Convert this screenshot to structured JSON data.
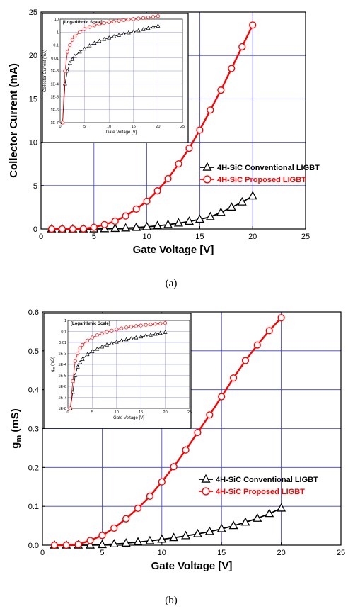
{
  "chart_data": [
    {
      "type": "line",
      "caption": "(a)",
      "xlabel": "Gate Voltage [V]",
      "ylabel": "Collector Current (mA)",
      "xlim": [
        0,
        25
      ],
      "ylim": [
        0,
        25
      ],
      "xticks": [
        0,
        5,
        10,
        15,
        20,
        25
      ],
      "yticks": [
        0,
        5,
        10,
        15,
        20,
        25
      ],
      "grid": true,
      "legend_position": "center-right",
      "series": [
        {
          "name": "4H-SiC Conventional LIGBT",
          "color": "#000000",
          "marker": "triangle",
          "x": [
            1,
            2,
            3,
            4,
            5,
            6,
            7,
            8,
            9,
            10,
            11,
            12,
            13,
            14,
            15,
            16,
            17,
            18,
            19,
            20
          ],
          "y": [
            0,
            0,
            0,
            0,
            0,
            0.02,
            0.05,
            0.1,
            0.17,
            0.25,
            0.36,
            0.5,
            0.67,
            0.87,
            1.1,
            1.4,
            1.9,
            2.5,
            3.1,
            3.8
          ]
        },
        {
          "name": "4H-SiC Proposed LIGBT",
          "color": "#ff0000",
          "marker": "circle",
          "x": [
            1,
            2,
            3,
            4,
            5,
            6,
            7,
            8,
            9,
            10,
            11,
            12,
            13,
            14,
            15,
            16,
            17,
            18,
            19,
            20
          ],
          "y": [
            0,
            0,
            0,
            0.02,
            0.2,
            0.5,
            0.9,
            1.5,
            2.3,
            3.2,
            4.4,
            5.8,
            7.5,
            9.3,
            11.4,
            13.7,
            16,
            18.5,
            21,
            23.5
          ]
        }
      ],
      "inset": {
        "title": "[Logarithmic Scale]",
        "xlabel": "Gate Voltage [V]",
        "ylabel": "Collector Current (mA)",
        "xlim": [
          0,
          25
        ],
        "xticks": [
          0,
          5,
          10,
          15,
          20,
          25
        ],
        "yscale": "log",
        "ytick_labels": [
          "10",
          "1",
          "0.1",
          "0.01",
          "1E-3",
          "1E-4",
          "1E-5",
          "1E-6",
          "1E-7"
        ],
        "ytick_values": [
          10,
          1,
          0.1,
          0.01,
          0.001,
          0.0001,
          1e-05,
          1e-06,
          1e-07
        ],
        "series": [
          {
            "name": "4H-SiC Conventional LIGBT",
            "color": "#000000",
            "marker": "triangle",
            "x": [
              0.5,
              1,
              1.5,
              2,
              2.5,
              3,
              4,
              5,
              6,
              7,
              8,
              9,
              10,
              11,
              12,
              13,
              14,
              15,
              16,
              17,
              18,
              19,
              20
            ],
            "y": [
              1e-07,
              0.0001,
              0.001,
              0.004,
              0.008,
              0.014,
              0.03,
              0.05,
              0.09,
              0.14,
              0.2,
              0.28,
              0.36,
              0.46,
              0.58,
              0.72,
              0.88,
              1.05,
              1.3,
              1.6,
              2.0,
              2.5,
              3.0
            ]
          },
          {
            "name": "4H-SiC Proposed LIGBT",
            "color": "#ff0000",
            "marker": "circle",
            "x": [
              0.5,
              1,
              1.5,
              2,
              2.5,
              3,
              4,
              5,
              6,
              7,
              8,
              9,
              10,
              11,
              12,
              13,
              14,
              15,
              16,
              17,
              18,
              19,
              20
            ],
            "y": [
              1e-07,
              0.001,
              0.03,
              0.1,
              0.25,
              0.45,
              1.0,
              1.7,
              2.5,
              3.3,
              4.2,
              5.0,
              5.8,
              6.6,
              7.5,
              8.3,
              9.2,
              10.2,
              11.2,
              12.3,
              13.5,
              15,
              17
            ]
          }
        ]
      }
    },
    {
      "type": "line",
      "caption": "(b)",
      "xlabel": "Gate Voltage [V]",
      "ylabel": "g",
      "ylabel_sub": "m",
      "ylabel_unit": " (mS)",
      "xlim": [
        0,
        25
      ],
      "ylim": [
        0,
        0.6
      ],
      "xticks": [
        0,
        5,
        10,
        15,
        20,
        25
      ],
      "yticks": [
        0.0,
        0.1,
        0.2,
        0.3,
        0.4,
        0.5,
        0.6
      ],
      "grid": true,
      "legend_position": "center-right",
      "series": [
        {
          "name": "4H-SiC Conventional LIGBT",
          "color": "#000000",
          "marker": "triangle",
          "x": [
            1,
            2,
            3,
            4,
            5,
            6,
            7,
            8,
            9,
            10,
            11,
            12,
            13,
            14,
            15,
            16,
            17,
            18,
            19,
            20
          ],
          "y": [
            0,
            0,
            0,
            0,
            0.001,
            0.003,
            0.005,
            0.008,
            0.011,
            0.015,
            0.019,
            0.024,
            0.029,
            0.035,
            0.042,
            0.05,
            0.059,
            0.069,
            0.081,
            0.095
          ]
        },
        {
          "name": "4H-SiC Proposed LIGBT",
          "color": "#ff0000",
          "marker": "circle",
          "x": [
            1,
            2,
            3,
            4,
            5,
            6,
            7,
            8,
            9,
            10,
            11,
            12,
            13,
            14,
            15,
            16,
            17,
            18,
            19,
            20
          ],
          "y": [
            0,
            0,
            0.002,
            0.012,
            0.025,
            0.044,
            0.068,
            0.095,
            0.126,
            0.163,
            0.202,
            0.245,
            0.29,
            0.335,
            0.382,
            0.43,
            0.475,
            0.515,
            0.552,
            0.585
          ]
        }
      ],
      "inset": {
        "title": "[Logarithmic Scale]",
        "xlabel": "Gate Voltage [V]",
        "ylabel": "g",
        "ylabel_sub": "m",
        "ylabel_unit": " (mS)",
        "xlim": [
          0,
          25
        ],
        "xticks": [
          0,
          5,
          10,
          15,
          20,
          25
        ],
        "yscale": "log",
        "ytick_labels": [
          "1",
          "0.1",
          "0.01",
          "1E-3",
          "1E-4",
          "1E-5",
          "1E-6",
          "1E-7",
          "1E-8"
        ],
        "ytick_values": [
          1,
          0.1,
          0.01,
          0.001,
          0.0001,
          1e-05,
          1e-06,
          1e-07,
          1e-08
        ],
        "series": [
          {
            "name": "4H-SiC Conventional LIGBT",
            "color": "#000000",
            "marker": "triangle",
            "x": [
              0.5,
              1,
              1.5,
              2,
              2.5,
              3,
              4,
              5,
              6,
              7,
              8,
              9,
              10,
              11,
              12,
              13,
              14,
              15,
              16,
              17,
              18,
              19,
              20
            ],
            "y": [
              1e-08,
              3e-07,
              1e-05,
              6e-05,
              0.00015,
              0.0003,
              0.0008,
              0.0015,
              0.0025,
              0.004,
              0.006,
              0.008,
              0.011,
              0.014,
              0.018,
              0.022,
              0.027,
              0.033,
              0.04,
              0.048,
              0.058,
              0.07,
              0.085
            ]
          },
          {
            "name": "4H-SiC Proposed LIGBT",
            "color": "#ff0000",
            "marker": "circle",
            "x": [
              0.5,
              1,
              1.5,
              2,
              2.5,
              3,
              4,
              5,
              6,
              7,
              8,
              9,
              10,
              11,
              12,
              13,
              14,
              15,
              16,
              17,
              18,
              19,
              20
            ],
            "y": [
              1e-08,
              3e-06,
              0.0002,
              0.001,
              0.003,
              0.006,
              0.015,
              0.028,
              0.045,
              0.065,
              0.09,
              0.12,
              0.15,
              0.19,
              0.23,
              0.27,
              0.31,
              0.35,
              0.39,
              0.43,
              0.48,
              0.53,
              0.58
            ]
          }
        ]
      }
    }
  ]
}
